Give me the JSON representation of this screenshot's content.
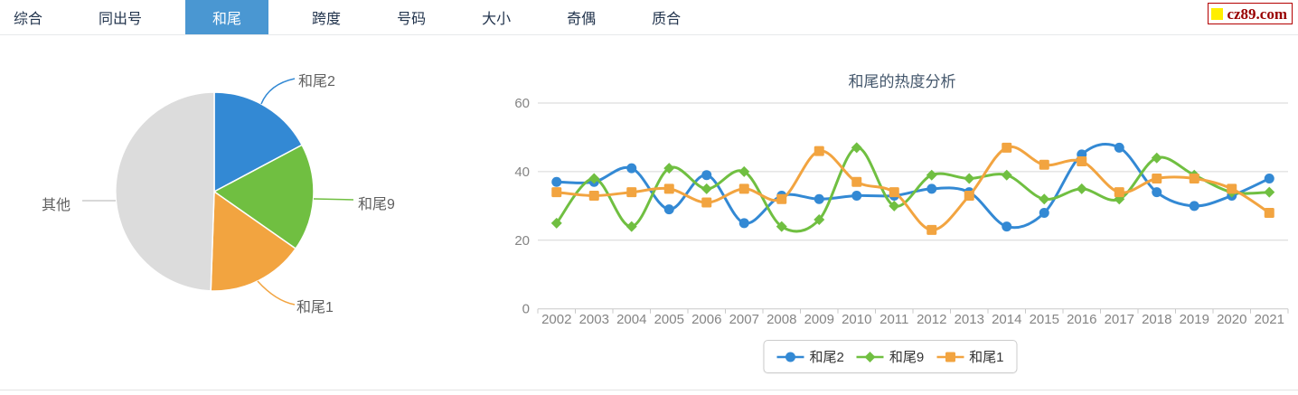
{
  "nav": {
    "tabs": [
      {
        "label": "综合",
        "active": false
      },
      {
        "label": "同出号",
        "active": false
      },
      {
        "label": "和尾",
        "active": true
      },
      {
        "label": "跨度",
        "active": false
      },
      {
        "label": "号码",
        "active": false
      },
      {
        "label": "大小",
        "active": false
      },
      {
        "label": "奇偶",
        "active": false
      },
      {
        "label": "质合",
        "active": false
      }
    ]
  },
  "logo": {
    "text": "cz89.com"
  },
  "colors": {
    "blue": "#3389d4",
    "green": "#70bf41",
    "orange": "#f2a440",
    "gray": "#dcdcdc",
    "active_tab_bg": "#4a97d2",
    "grid": "#d6d6d6",
    "axis": "#c9c9c9",
    "tick_label": "#848484",
    "title": "#44576c",
    "leader_gray": "#cccccc"
  },
  "chart_data": [
    {
      "type": "pie",
      "slices": [
        {
          "label": "和尾2",
          "percent": 17.2,
          "start_deg": 0,
          "end_deg": 62,
          "color_key": "blue"
        },
        {
          "label": "和尾9",
          "percent": 17.5,
          "start_deg": 62,
          "end_deg": 125,
          "color_key": "green"
        },
        {
          "label": "和尾1",
          "percent": 15.8,
          "start_deg": 125,
          "end_deg": 182,
          "color_key": "orange"
        },
        {
          "label": "其他",
          "percent": 49.5,
          "start_deg": 182,
          "end_deg": 360,
          "color_key": "gray"
        }
      ],
      "legend_position": "none"
    },
    {
      "type": "line",
      "title": "和尾的热度分析",
      "categories": [
        "2002",
        "2003",
        "2004",
        "2005",
        "2006",
        "2007",
        "2008",
        "2009",
        "2010",
        "2011",
        "2012",
        "2013",
        "2014",
        "2015",
        "2016",
        "2017",
        "2018",
        "2019",
        "2020",
        "2021"
      ],
      "ylim": [
        0,
        60
      ],
      "yticks": [
        0,
        20,
        40,
        60
      ],
      "grid": true,
      "legend_position": "bottom",
      "series": [
        {
          "name": "和尾2",
          "marker": "circle",
          "color_key": "blue",
          "values": [
            37,
            37,
            41,
            29,
            39,
            25,
            33,
            32,
            33,
            33,
            35,
            34,
            24,
            28,
            45,
            47,
            34,
            30,
            33,
            38
          ]
        },
        {
          "name": "和尾9",
          "marker": "diamond",
          "color_key": "green",
          "values": [
            25,
            38,
            24,
            41,
            35,
            40,
            24,
            26,
            47,
            30,
            39,
            38,
            39,
            32,
            35,
            32,
            44,
            39,
            34,
            34
          ]
        },
        {
          "name": "和尾1",
          "marker": "square",
          "color_key": "orange",
          "values": [
            34,
            33,
            34,
            35,
            31,
            35,
            32,
            46,
            37,
            34,
            23,
            33,
            47,
            42,
            43,
            34,
            38,
            38,
            35,
            28
          ]
        }
      ]
    }
  ]
}
